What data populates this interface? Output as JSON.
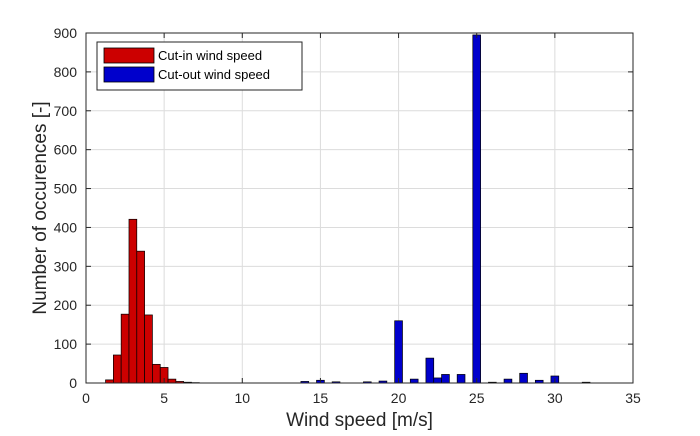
{
  "chart_data": {
    "type": "bar",
    "xlabel": "Wind speed [m/s]",
    "ylabel": "Number of occurences [-]",
    "xlim": [
      0,
      35
    ],
    "ylim": [
      0,
      900
    ],
    "xticks": [
      0,
      5,
      10,
      15,
      20,
      25,
      30,
      35
    ],
    "yticks": [
      0,
      100,
      200,
      300,
      400,
      500,
      600,
      700,
      800,
      900
    ],
    "grid": true,
    "legend_position": "top-left",
    "bar_width": 0.5,
    "series": [
      {
        "name": "Cut-in wind speed",
        "color": "#cc0000",
        "x": [
          1.5,
          2.0,
          2.5,
          3.0,
          3.5,
          4.0,
          4.5,
          5.0,
          5.5,
          6.0,
          6.5,
          7.0
        ],
        "values": [
          8,
          72,
          177,
          421,
          339,
          175,
          48,
          40,
          10,
          4,
          2,
          1
        ]
      },
      {
        "name": "Cut-out wind speed",
        "color": "#0000cc",
        "x": [
          14,
          15,
          16,
          18,
          19,
          20,
          21,
          22,
          22.5,
          23,
          24,
          25,
          26,
          27,
          28,
          29,
          30,
          32
        ],
        "values": [
          4,
          7,
          3,
          3,
          5,
          160,
          10,
          64,
          13,
          22,
          22,
          895,
          2,
          10,
          25,
          7,
          18,
          2
        ]
      }
    ]
  }
}
